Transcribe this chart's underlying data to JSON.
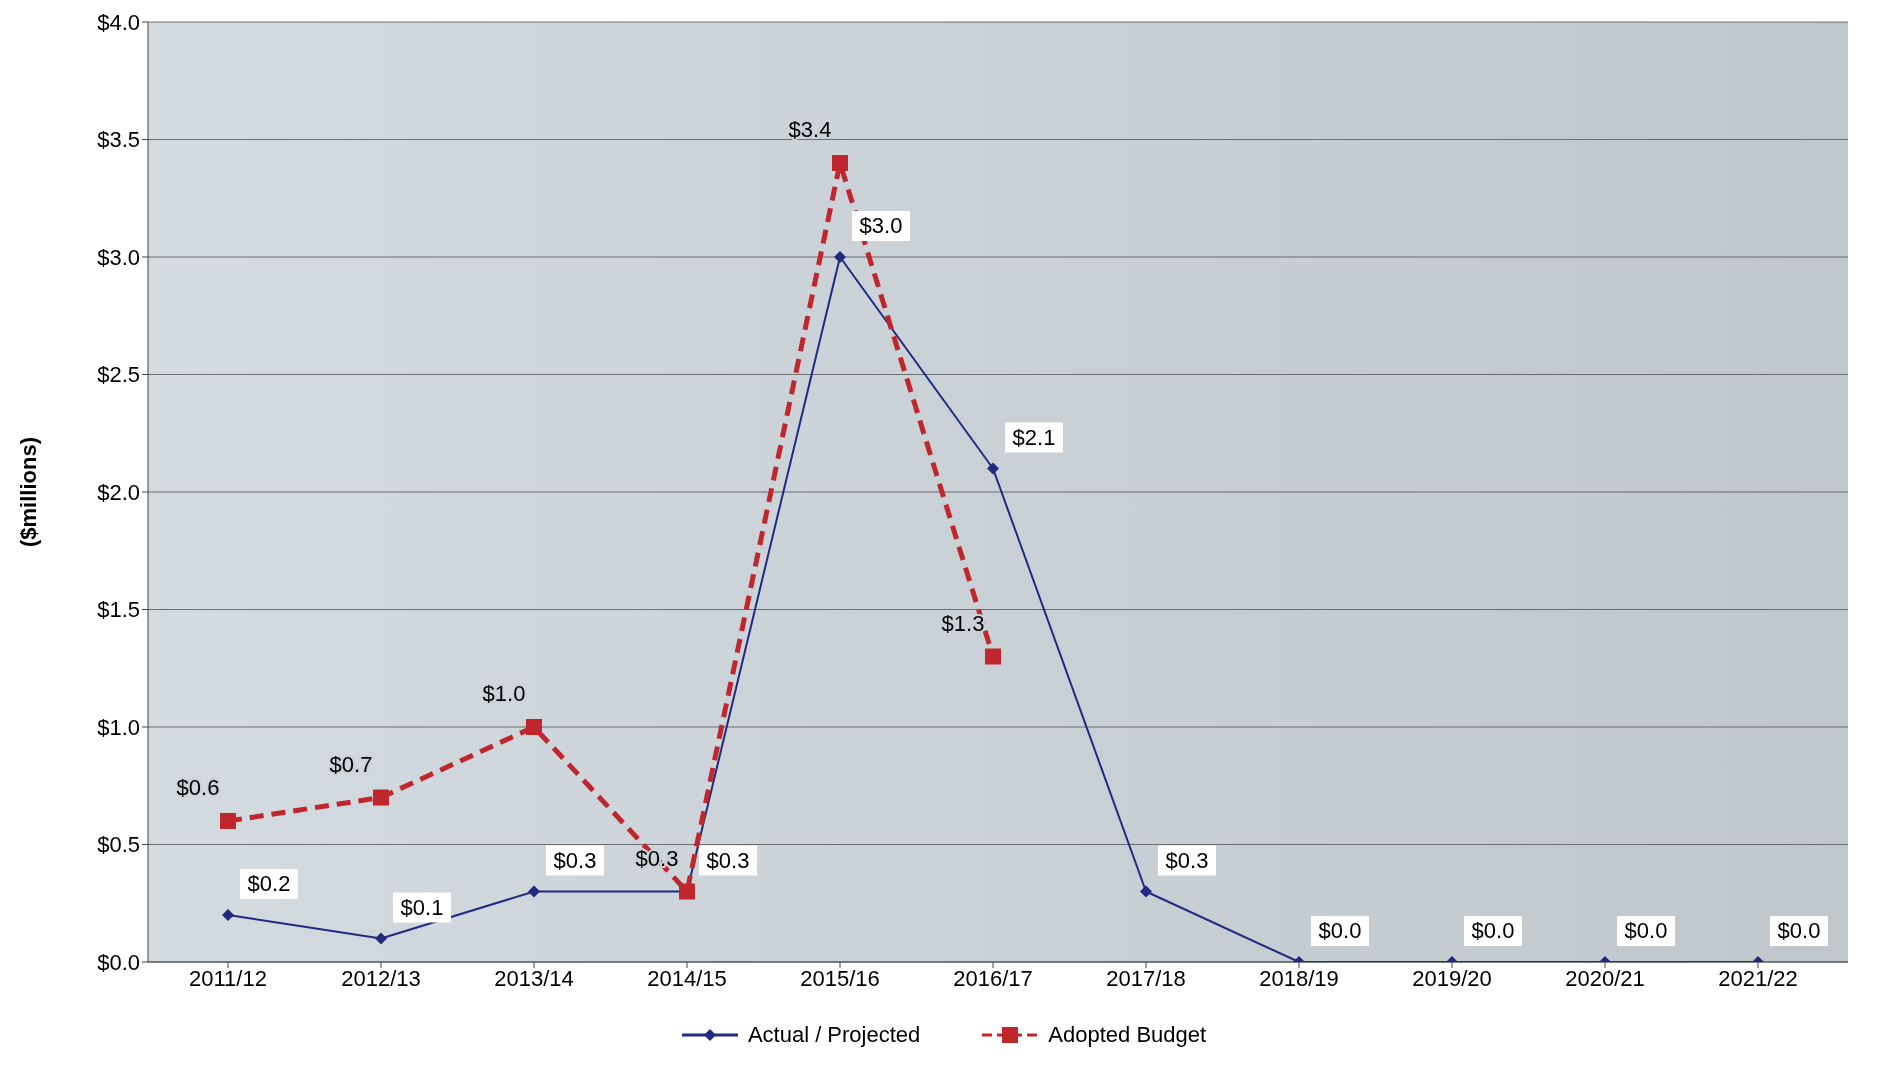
{
  "chart_data": {
    "type": "line",
    "ylabel": "($millions)",
    "categories": [
      "2011/12",
      "2012/13",
      "2013/14",
      "2014/15",
      "2015/16",
      "2016/17",
      "2017/18",
      "2018/19",
      "2019/20",
      "2020/21",
      "2021/22"
    ],
    "series": [
      {
        "name": "Actual / Projected",
        "color": "#1f2a80",
        "marker": "diamond",
        "line_style": "solid",
        "values": [
          0.2,
          0.1,
          0.3,
          0.3,
          3.0,
          2.1,
          0.3,
          0,
          0,
          0,
          0
        ],
        "value_labels": [
          "$0.2",
          "$0.1",
          "$0.3",
          "$0.3",
          "$3.0",
          "$2.1",
          "$0.3",
          "$0.0",
          "$0.0",
          "$0.0",
          "$0.0"
        ]
      },
      {
        "name": "Adopted Budget",
        "color": "#c0272d",
        "marker": "square",
        "line_style": "dashed",
        "values": [
          0.6,
          0.7,
          1.0,
          0.3,
          3.4,
          1.3,
          null,
          null,
          null,
          null,
          null
        ],
        "value_labels": [
          "$0.6",
          "$0.7",
          "$1.0",
          "$0.3",
          "$3.4",
          "$1.3",
          null,
          null,
          null,
          null,
          null
        ]
      }
    ],
    "ylim": [
      0,
      4
    ],
    "yticks": [
      {
        "value": 0,
        "label": "$0.0"
      },
      {
        "value": 0.5,
        "label": "$0.5"
      },
      {
        "value": 1,
        "label": "$1.0"
      },
      {
        "value": 1.5,
        "label": "$1.5"
      },
      {
        "value": 2,
        "label": "$2.0"
      },
      {
        "value": 2.5,
        "label": "$2.5"
      },
      {
        "value": 3,
        "label": "$3.0"
      },
      {
        "value": 3.5,
        "label": "$3.5"
      },
      {
        "value": 4,
        "label": "$4.0"
      }
    ],
    "grid": "y",
    "legend": "bottom"
  }
}
